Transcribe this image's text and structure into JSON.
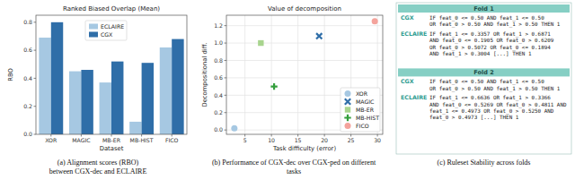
{
  "chart_data": [
    {
      "type": "bar",
      "title": "Ranked Biased Overlap (Mean)",
      "x_label": "Dataset",
      "y_label": "RBO",
      "caption": [
        "(a) Alignment scores (RBO)",
        "between CGX-dec and ECLAIRE"
      ],
      "categories": [
        "XOR",
        "MAGIC",
        "MB-ER",
        "MB-HIST",
        "FICO"
      ],
      "series": [
        {
          "name": "ECLAIRE",
          "color": "#a6c8e2",
          "values": [
            0.69,
            0.45,
            0.37,
            0.09,
            0.62
          ]
        },
        {
          "name": "CGX",
          "color": "#2f6ea8",
          "values": [
            0.8,
            0.46,
            0.52,
            0.51,
            0.68
          ]
        }
      ],
      "ylim": [
        0,
        0.85
      ],
      "yticks": [
        {
          "value": 0,
          "label": "0.0"
        },
        {
          "value": 0.2,
          "label": "0.2"
        },
        {
          "value": 0.4,
          "label": "0.4"
        },
        {
          "value": 0.6,
          "label": "0.6"
        },
        {
          "value": 0.8,
          "label": "0.8"
        }
      ],
      "grid": false,
      "legend": "upper center"
    },
    {
      "type": "scatter",
      "title": "Value of decomposition",
      "x_label": "Task difficulty (error)",
      "y_label": "Decompositional diff.",
      "caption": [
        "(b) Performance of CGX-dec over CGX-ped on different",
        "tasks"
      ],
      "series": [
        {
          "name": "XOR",
          "color": "#a6c8e2",
          "marker": "circle",
          "x": [
            3
          ],
          "values": [
            0.02
          ]
        },
        {
          "name": "MAGIC",
          "color": "#2f6ea8",
          "marker": "x",
          "x": [
            19
          ],
          "values": [
            1.08
          ]
        },
        {
          "name": "MB-ER",
          "color": "#a8d48e",
          "marker": "square",
          "x": [
            8
          ],
          "values": [
            1.0
          ]
        },
        {
          "name": "MB-HIST",
          "color": "#339e3c",
          "marker": "plus",
          "x": [
            10.5
          ],
          "values": [
            0.5
          ]
        },
        {
          "name": "FICO",
          "color": "#f4a39c",
          "marker": "circle",
          "x": [
            29.5
          ],
          "values": [
            1.25
          ]
        }
      ],
      "xlim": [
        1.5,
        31
      ],
      "ylim": [
        -0.05,
        1.32
      ],
      "xticks": [
        5,
        10,
        15,
        20,
        25,
        30
      ],
      "yticks": [
        {
          "value": 0,
          "label": "0.0"
        },
        {
          "value": 0.2,
          "label": "0.2"
        },
        {
          "value": 0.4,
          "label": "0.4"
        },
        {
          "value": 0.6,
          "label": "0.6"
        },
        {
          "value": 0.8,
          "label": "0.8"
        },
        {
          "value": 1.0,
          "label": "1.0"
        },
        {
          "value": 1.2,
          "label": "1.2"
        }
      ],
      "grid": true,
      "legend": "lower right"
    }
  ],
  "rulesets": {
    "caption": "(c) Ruleset Stability across folds",
    "folds": [
      {
        "name": "Fold 1",
        "rules": [
          {
            "model": "CGX",
            "lines": [
              "IF feat_0 <= 0.50 AND feat_1 <= 0.50",
              "OR feat_0 > 0.50 AND feat_1 > 0.50 THEN 1"
            ]
          },
          {
            "model": "ECLAIRE",
            "lines": [
              "IF feat_1 <= 0.3357 OR feat_1 > 0.6871",
              "AND feat_0 <= 0.1905 OR feat_0 > 0.6209",
              "OR feat_0 > 0.5072 OR feat_0 <= 0.1894",
              "AND feat_1 > 0.3004 [...] THEN 1"
            ]
          }
        ]
      },
      {
        "name": "Fold 2",
        "rules": [
          {
            "model": "CGX",
            "lines": [
              "IF feat_0 <= 0.50 AND feat_1 <= 0.50",
              "OR feat_0 > 0.50 AND feat_1 > 0.50 THEN 1"
            ]
          },
          {
            "model": "ECLAIRE",
            "lines": [
              "IF feat_1 <= 0.6636 OR feat_1 > 0.3366",
              "AND feat_0 <= 0.5269 OR feat_0 > 0.4811 AND",
              "feat_1 <= 0.4973 OR feat_0 > 0.5250 AND",
              "feat_0 > 0.4973 [...] THEN 1"
            ]
          }
        ]
      }
    ]
  }
}
